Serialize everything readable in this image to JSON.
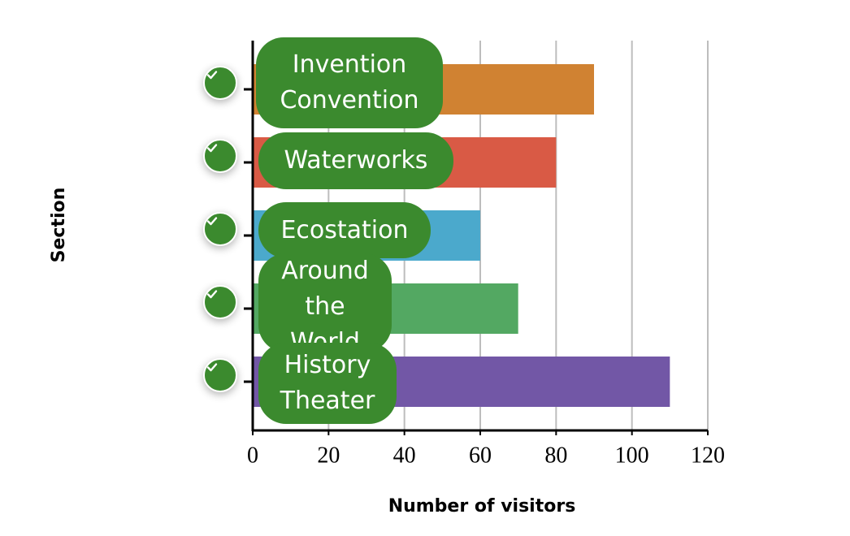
{
  "chart_data": {
    "type": "bar",
    "orientation": "horizontal",
    "x_label": "Number of visitors",
    "y_label": "Section",
    "categories": [
      "Invention Convention",
      "Waterworks",
      "Ecostation",
      "Around the World",
      "History Theater"
    ],
    "values": [
      90,
      80,
      60,
      70,
      110
    ],
    "colors": [
      "#d08232",
      "#d95a45",
      "#4ba9cc",
      "#53a862",
      "#7257a6"
    ],
    "xlim": [
      0,
      120
    ],
    "xticks": [
      0,
      20,
      40,
      60,
      80,
      100,
      120
    ],
    "grid": true
  }
}
